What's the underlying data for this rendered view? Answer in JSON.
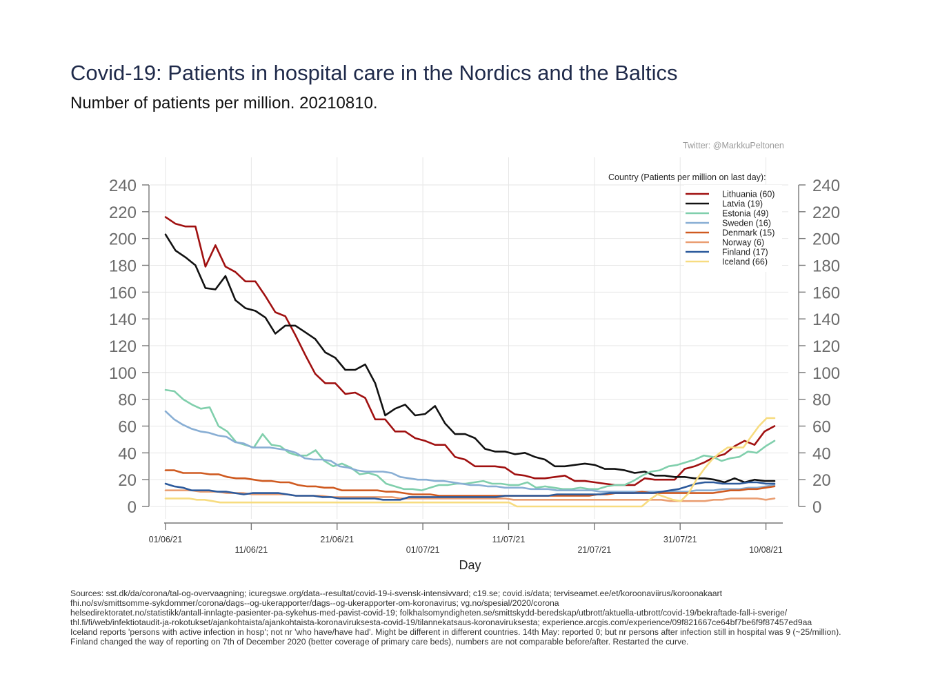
{
  "header": {
    "title": "Covid-19: Patients in hospital care in the Nordics and the Baltics",
    "subtitle": "Number of patients per million. 20210810.",
    "credit": "Twitter: @MarkkuPeltonen"
  },
  "sources": [
    "Sources: sst.dk/da/corona/tal-og-overvaagning; icuregswe.org/data--resultat/covid-19-i-svensk-intensivvard; c19.se; covid.is/data;  terviseamet.ee/et/koroonaviirus/koroonakaart",
    "fhi.no/sv/smittsomme-sykdommer/corona/dags--og-ukerapporter/dags--og-ukerapporter-om-koronavirus; vg.no/spesial/2020/corona",
    "helsedirektoratet.no/statistikk/antall-innlagte-pasienter-pa-sykehus-med-pavist-covid-19; folkhalsomyndigheten.se/smittskydd-beredskap/utbrott/aktuella-utbrott/covid-19/bekraftade-fall-i-sverige/",
    "thl.fi/fi/web/infektiotaudit-ja-rokotukset/ajankohtaista/ajankohtaista-koronaviruksesta-covid-19/tilannekatsaus-koronaviruksesta; experience.arcgis.com/experience/09f821667ce64bf7be6f9f87457ed9aa",
    "Iceland reports 'persons with active infection in hosp'; not nr 'who have/have had'. Might be different in different countries. 14th May: reported 0; but nr persons after infection still in hospital was 9 (~25/million).",
    "Finland changed the way of reporting on 7th of December 2020 (better coverage of primary care beds), numbers are not comparable before/after. Restarted the curve."
  ],
  "chart_data": {
    "type": "line",
    "title": "Covid-19: Patients in hospital care in the Nordics and the Baltics",
    "subtitle": "Number of patients per million. 20210810.",
    "xlabel": "Day",
    "ylabel": "",
    "ylim": [
      0,
      240
    ],
    "yticks": [
      0,
      20,
      40,
      60,
      80,
      100,
      120,
      140,
      160,
      180,
      200,
      220,
      240
    ],
    "x_start": "01/06/21",
    "x_days": 71,
    "xticks": [
      {
        "day": 0,
        "label": "01/06/21"
      },
      {
        "day": 10,
        "label": "11/06/21"
      },
      {
        "day": 20,
        "label": "21/06/21"
      },
      {
        "day": 30,
        "label": "01/07/21"
      },
      {
        "day": 40,
        "label": "11/07/21"
      },
      {
        "day": 50,
        "label": "21/07/21"
      },
      {
        "day": 60,
        "label": "31/07/21"
      },
      {
        "day": 70,
        "label": "10/08/21"
      }
    ],
    "grid": true,
    "legend_title": "Country (Patients per million on last day):",
    "legend_position": "top-right",
    "series": [
      {
        "name": "Lithuania (60)",
        "color": "#a01010",
        "values": [
          216,
          211,
          209,
          209,
          179,
          195,
          179,
          175,
          168,
          168,
          157,
          145,
          142,
          128,
          113,
          99,
          92,
          92,
          84,
          85,
          81,
          65,
          65,
          56,
          56,
          51,
          49,
          46,
          46,
          37,
          35,
          30,
          30,
          30,
          29,
          24,
          23,
          21,
          21,
          22,
          23,
          19,
          19,
          18,
          17,
          16,
          16,
          16,
          21,
          20,
          20,
          20,
          28,
          30,
          33,
          37,
          39,
          45,
          49,
          46,
          56,
          60
        ]
      },
      {
        "name": "Latvia (19)",
        "color": "#111111",
        "values": [
          203,
          191,
          186,
          180,
          163,
          162,
          172,
          154,
          148,
          146,
          141,
          129,
          135,
          135,
          130,
          125,
          115,
          111,
          102,
          102,
          106,
          92,
          68,
          73,
          76,
          68,
          69,
          75,
          62,
          54,
          54,
          51,
          43,
          41,
          41,
          39,
          40,
          37,
          35,
          30,
          30,
          31,
          32,
          31,
          28,
          28,
          27,
          25,
          26,
          23,
          23,
          22,
          22,
          21,
          21,
          20,
          18,
          21,
          18,
          20,
          19,
          19
        ]
      },
      {
        "name": "Estonia (49)",
        "color": "#80cfac",
        "values": [
          87,
          86,
          80,
          76,
          73,
          74,
          60,
          56,
          48,
          46,
          44,
          54,
          46,
          45,
          40,
          38,
          38,
          42,
          34,
          30,
          32,
          29,
          24,
          25,
          23,
          17,
          15,
          13,
          13,
          12,
          14,
          16,
          16,
          17,
          17,
          18,
          19,
          17,
          17,
          16,
          16,
          18,
          14,
          15,
          14,
          13,
          13,
          14,
          13,
          13,
          15,
          16,
          16,
          19,
          23,
          26,
          27,
          30,
          31,
          33,
          35,
          38,
          37,
          34,
          36,
          37,
          41,
          40,
          45,
          49
        ]
      },
      {
        "name": "Sweden (16)",
        "color": "#88aed4",
        "values": [
          71,
          65,
          61,
          58,
          56,
          55,
          53,
          52,
          48,
          47,
          44,
          44,
          44,
          43,
          42,
          40,
          36,
          35,
          35,
          34,
          30,
          29,
          27,
          26,
          26,
          26,
          25,
          22,
          21,
          20,
          20,
          19,
          19,
          18,
          17,
          16,
          16,
          15,
          15,
          14,
          14,
          14,
          13,
          13,
          13,
          12,
          12,
          12,
          12,
          12,
          11,
          11,
          11,
          11,
          11,
          11,
          11,
          11,
          11,
          11,
          11,
          12,
          12,
          12,
          13,
          13,
          13,
          14,
          14,
          15,
          16
        ]
      },
      {
        "name": "Denmark (15)",
        "color": "#cf5a20",
        "values": [
          27,
          27,
          25,
          25,
          25,
          24,
          24,
          22,
          21,
          21,
          20,
          19,
          19,
          18,
          18,
          16,
          15,
          15,
          14,
          14,
          12,
          12,
          12,
          12,
          12,
          11,
          11,
          10,
          9,
          9,
          9,
          8,
          8,
          8,
          8,
          8,
          8,
          8,
          8,
          8,
          8,
          8,
          8,
          8,
          8,
          8,
          8,
          8,
          8,
          9,
          9,
          10,
          10,
          10,
          11,
          10,
          10,
          10,
          10,
          10,
          10,
          10,
          10,
          11,
          12,
          12,
          13,
          13,
          14,
          15
        ]
      },
      {
        "name": "Norway (6)",
        "color": "#ea9e72",
        "values": [
          12,
          12,
          12,
          12,
          11,
          11,
          11,
          10,
          10,
          10,
          9,
          9,
          9,
          9,
          9,
          8,
          8,
          8,
          8,
          7,
          7,
          7,
          7,
          7,
          7,
          7,
          7,
          6,
          6,
          6,
          6,
          6,
          6,
          6,
          6,
          6,
          6,
          6,
          6,
          6,
          5,
          5,
          5,
          5,
          5,
          5,
          5,
          5,
          5,
          5,
          5,
          5,
          5,
          5,
          5,
          5,
          5,
          5,
          4,
          4,
          4,
          4,
          4,
          5,
          5,
          6,
          6,
          6,
          6,
          5,
          6
        ]
      },
      {
        "name": "Finland (17)",
        "color": "#2c5a9c",
        "values": [
          17,
          15,
          14,
          12,
          12,
          12,
          11,
          11,
          10,
          9,
          10,
          10,
          10,
          10,
          9,
          8,
          8,
          8,
          7,
          7,
          6,
          6,
          6,
          6,
          6,
          5,
          5,
          5,
          7,
          7,
          7,
          7,
          7,
          7,
          7,
          7,
          7,
          7,
          7,
          8,
          8,
          8,
          8,
          8,
          8,
          9,
          9,
          9,
          9,
          9,
          9,
          10,
          10,
          10,
          10,
          10,
          10,
          11,
          12,
          13,
          15,
          17,
          18,
          18,
          17,
          17,
          17,
          18,
          18,
          17,
          17
        ]
      },
      {
        "name": "Iceland (66)",
        "color": "#f7dc80",
        "values": [
          6,
          6,
          6,
          6,
          5,
          5,
          4,
          3,
          3,
          3,
          3,
          3,
          3,
          3,
          3,
          3,
          3,
          3,
          3,
          3,
          3,
          3,
          3,
          3,
          3,
          3,
          3,
          3,
          3,
          3,
          3,
          3,
          3,
          3,
          3,
          3,
          3,
          3,
          3,
          3,
          3,
          3,
          3,
          3,
          3,
          0,
          0,
          0,
          0,
          0,
          0,
          0,
          0,
          0,
          0,
          0,
          0,
          0,
          0,
          0,
          0,
          0,
          5,
          9,
          7,
          5,
          4,
          10,
          20,
          28,
          35,
          40,
          44,
          44,
          44,
          52,
          60,
          66,
          66
        ]
      }
    ]
  }
}
